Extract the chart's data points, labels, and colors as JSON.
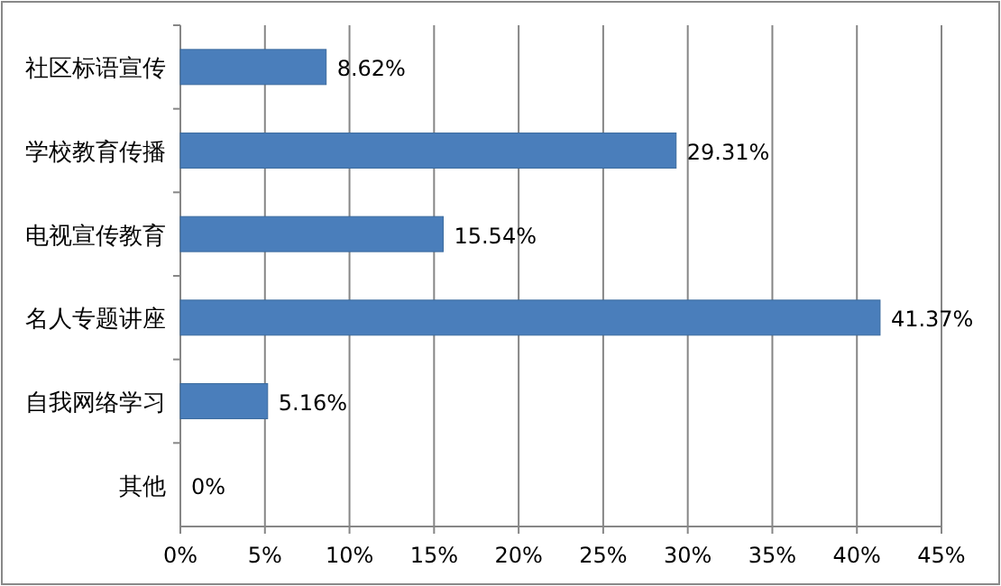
{
  "chart_data": {
    "type": "bar",
    "orientation": "horizontal",
    "categories": [
      "社区标语宣传",
      "学校教育传播",
      "电视宣传教育",
      "名人专题讲座",
      "自我网络学习",
      "其他"
    ],
    "values": [
      8.62,
      29.31,
      15.54,
      41.37,
      5.16,
      0
    ],
    "value_labels": [
      "8.62%",
      "29.31%",
      "15.54%",
      "41.37%",
      "5.16%",
      "0%"
    ],
    "color": "#4a7ebb",
    "xlim": [
      0,
      45
    ],
    "xticks": [
      {
        "value": 0,
        "label": "0%"
      },
      {
        "value": 5,
        "label": "5%"
      },
      {
        "value": 10,
        "label": "10%"
      },
      {
        "value": 15,
        "label": "15%"
      },
      {
        "value": 20,
        "label": "20%"
      },
      {
        "value": 25,
        "label": "25%"
      },
      {
        "value": 30,
        "label": "30%"
      },
      {
        "value": 35,
        "label": "35%"
      },
      {
        "value": 40,
        "label": "40%"
      },
      {
        "value": 45,
        "label": "45%"
      }
    ],
    "grid": "x"
  }
}
